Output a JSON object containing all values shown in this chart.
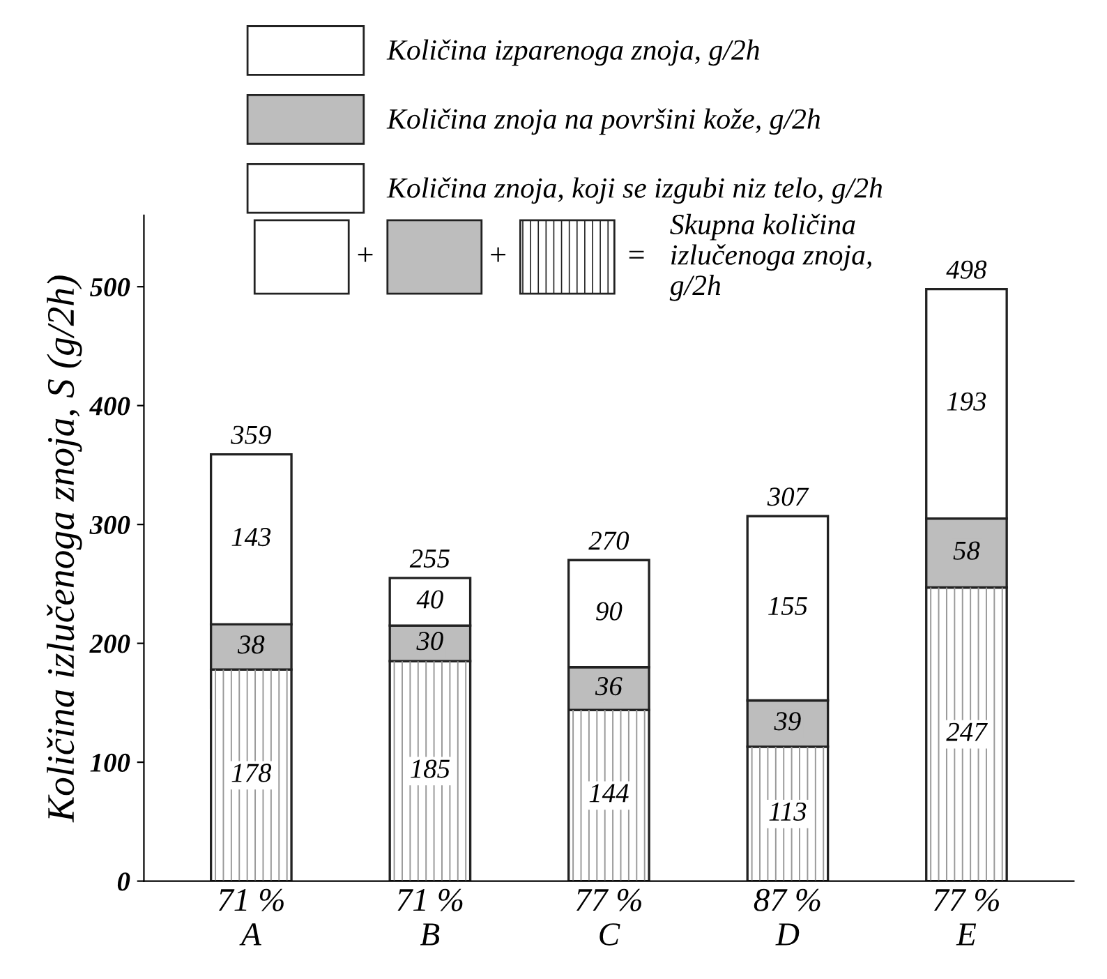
{
  "chart_data": {
    "type": "bar",
    "stacked": true,
    "ylabel": "Količina izlučenoga znoja, S (g/2h)",
    "categories": [
      "71 %\nA",
      "71 %\nB",
      "77 %\nC",
      "87 %\nD",
      "77 %\nE"
    ],
    "series": [
      {
        "name": "Količina znoja, koji se izgubi niz telo, g/2h",
        "color": "#ffffff",
        "values": [
          178,
          185,
          144,
          113,
          247
        ]
      },
      {
        "name": "Količina znoja na površini kože, g/2h",
        "color": "#bdbdbd",
        "values": [
          38,
          30,
          36,
          39,
          58
        ]
      },
      {
        "name": "Količina izparenoga znoja, g/2h",
        "color": "#ffffff",
        "values": [
          143,
          40,
          90,
          155,
          193
        ]
      }
    ],
    "totals": [
      "359",
      "255",
      "270",
      "307",
      "498"
    ],
    "data_labels": true,
    "annotations": [
      "+",
      "+",
      "=",
      "Skupna količina\nizlučenoga znoja,\ng/2h"
    ],
    "ylim": [
      0,
      560
    ],
    "yticks": [
      0,
      100,
      200,
      300,
      400,
      500
    ],
    "grid": false,
    "legend": "top"
  }
}
